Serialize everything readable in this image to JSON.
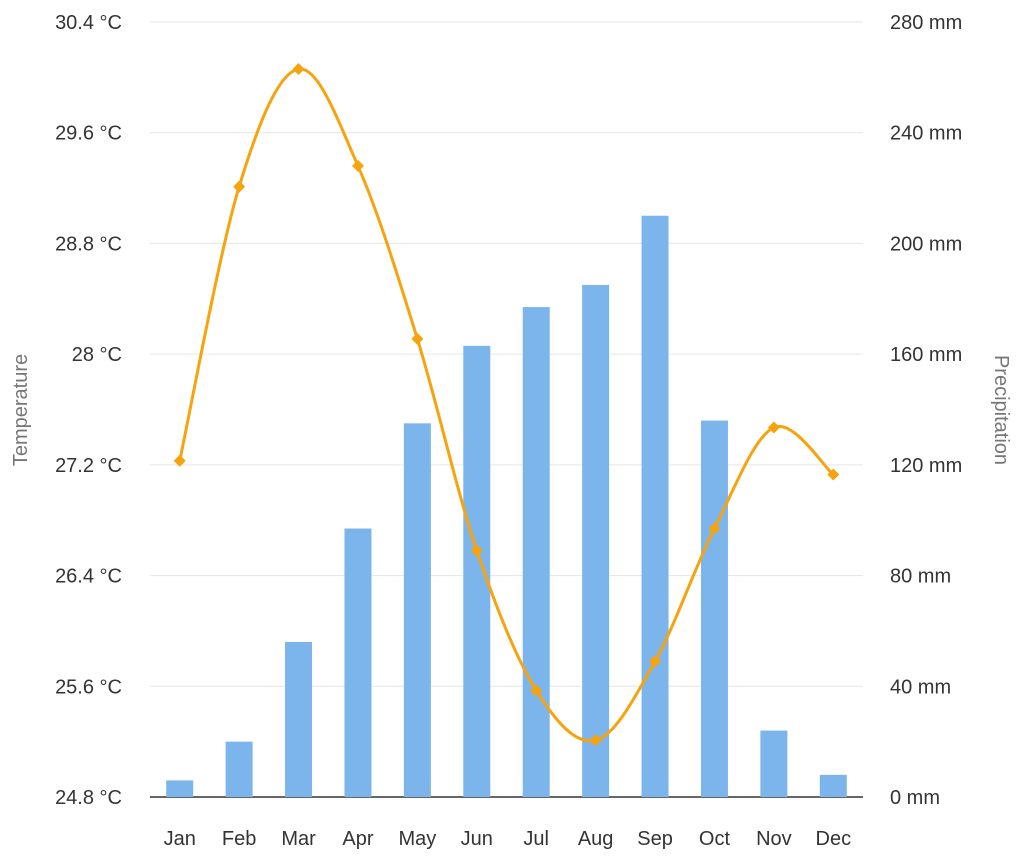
{
  "chart_data": {
    "type": "bar+line",
    "title": "",
    "categories": [
      "Jan",
      "Feb",
      "Mar",
      "Apr",
      "May",
      "Jun",
      "Jul",
      "Aug",
      "Sep",
      "Oct",
      "Nov",
      "Dec"
    ],
    "series": [
      {
        "name": "Precipitation",
        "type": "bar",
        "axis": "right",
        "unit": "mm",
        "color": "#7cb5ec",
        "values": [
          6,
          20,
          56,
          97,
          135,
          163,
          177,
          185,
          210,
          136,
          24,
          8
        ]
      },
      {
        "name": "Temperature",
        "type": "line",
        "axis": "left",
        "unit": "°C",
        "color": "#f7a30e",
        "smooth": true,
        "marker": "diamond",
        "values": [
          27.23,
          29.21,
          30.06,
          29.36,
          28.11,
          26.58,
          25.57,
          25.21,
          25.78,
          26.74,
          27.47,
          27.13
        ]
      }
    ],
    "y_left": {
      "label": "Temperature",
      "range": [
        24.8,
        30.4
      ],
      "ticks": [
        "24.8 °C",
        "25.6 °C",
        "26.4 °C",
        "27.2 °C",
        "28 °C",
        "28.8 °C",
        "29.6 °C",
        "30.4 °C"
      ]
    },
    "y_right": {
      "label": "Precipitation",
      "range": [
        0,
        280
      ],
      "ticks": [
        "0 mm",
        "40 mm",
        "80 mm",
        "120 mm",
        "160 mm",
        "200 mm",
        "240 mm",
        "280 mm"
      ]
    },
    "grid": true,
    "legend": "none"
  }
}
